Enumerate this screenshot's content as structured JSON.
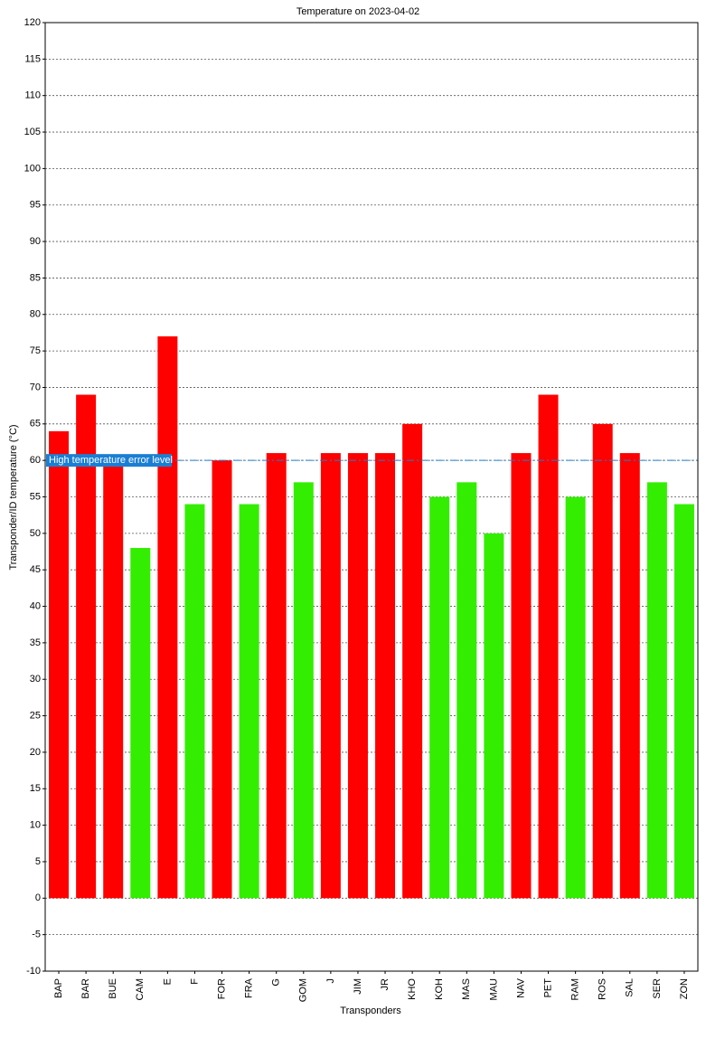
{
  "chart_data": {
    "type": "bar",
    "title": "Temperature on 2023-04-02",
    "x_label": "Transponders",
    "y_label": "Transponder/ID temperature (°C)",
    "categories": [
      "BAP",
      "BAR",
      "BUE",
      "CAM",
      "E",
      "F",
      "FOR",
      "FRA",
      "G",
      "GOM",
      "J",
      "JIM",
      "JR",
      "KHO",
      "KOH",
      "MAS",
      "MAU",
      "NAV",
      "PET",
      "RAM",
      "ROS",
      "SAL",
      "SER",
      "ZON"
    ],
    "values": [
      64,
      69,
      60,
      48,
      77,
      54,
      60,
      54,
      61,
      57,
      61,
      61,
      61,
      65,
      55,
      57,
      50,
      61,
      69,
      55,
      65,
      61,
      57,
      54
    ],
    "colors": [
      "#ff0000",
      "#ff0000",
      "#ff0000",
      "#33ee00",
      "#ff0000",
      "#33ee00",
      "#ff0000",
      "#33ee00",
      "#ff0000",
      "#33ee00",
      "#ff0000",
      "#ff0000",
      "#ff0000",
      "#ff0000",
      "#33ee00",
      "#33ee00",
      "#33ee00",
      "#ff0000",
      "#ff0000",
      "#33ee00",
      "#ff0000",
      "#ff0000",
      "#33ee00",
      "#33ee00"
    ],
    "reference_line": {
      "value": 60,
      "label": "High temperature error level",
      "color": "#1a7fd4"
    },
    "ylim": [
      -10,
      120
    ],
    "yticks": [
      -10,
      -5,
      0,
      5,
      10,
      15,
      20,
      25,
      30,
      35,
      40,
      45,
      50,
      55,
      60,
      65,
      70,
      75,
      80,
      85,
      90,
      95,
      100,
      105,
      110,
      115,
      120
    ],
    "grid": true
  }
}
